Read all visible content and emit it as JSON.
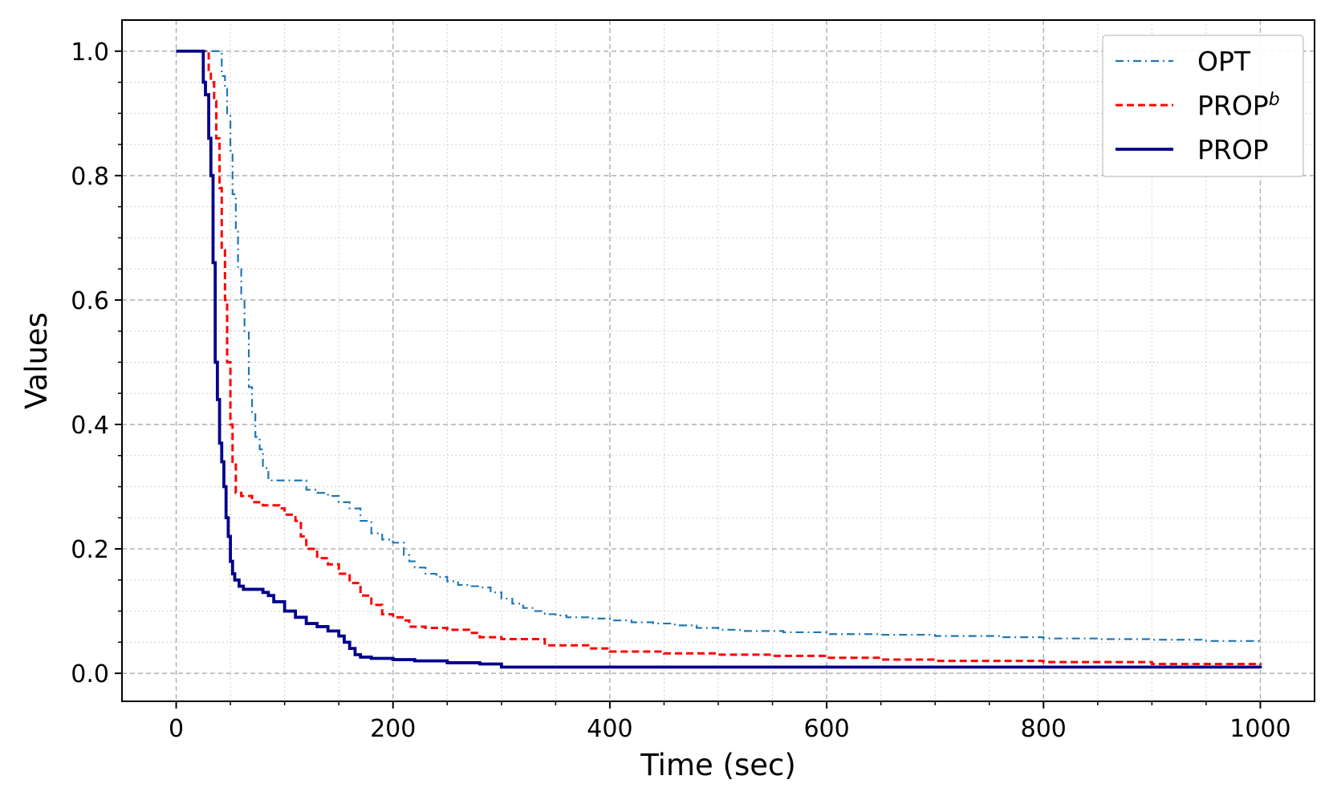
{
  "chart_data": {
    "type": "line",
    "xlabel": "Time (sec)",
    "ylabel": "Values",
    "xlim": [
      -50,
      1050
    ],
    "ylim": [
      -0.045,
      1.05
    ],
    "xticks": [
      "0",
      "200",
      "400",
      "600",
      "800",
      "1000"
    ],
    "yticks": [
      "0.0",
      "0.2",
      "0.4",
      "0.6",
      "0.8",
      "1.0"
    ],
    "grid": true,
    "minor_grid": true,
    "legend_position": "top-right",
    "series": [
      {
        "name": "OPT",
        "label_sup": "",
        "color": "#1f77b4",
        "style": "dashdot",
        "x": [
          0,
          40,
          42,
          45,
          47,
          50,
          52,
          55,
          57,
          60,
          63,
          67,
          70,
          73,
          77,
          80,
          85,
          90,
          110,
          120,
          130,
          140,
          150,
          160,
          170,
          180,
          190,
          200,
          210,
          215,
          220,
          230,
          240,
          250,
          260,
          270,
          280,
          290,
          300,
          310,
          320,
          330,
          340,
          350,
          360,
          380,
          400,
          420,
          440,
          460,
          480,
          500,
          520,
          560,
          600,
          650,
          700,
          760,
          800,
          850,
          900,
          950,
          1000
        ],
        "y": [
          1.0,
          1.0,
          0.96,
          0.94,
          0.9,
          0.84,
          0.77,
          0.71,
          0.65,
          0.6,
          0.55,
          0.46,
          0.42,
          0.38,
          0.36,
          0.33,
          0.31,
          0.31,
          0.31,
          0.295,
          0.29,
          0.285,
          0.275,
          0.265,
          0.245,
          0.225,
          0.215,
          0.21,
          0.19,
          0.18,
          0.17,
          0.16,
          0.155,
          0.148,
          0.142,
          0.14,
          0.138,
          0.13,
          0.12,
          0.112,
          0.105,
          0.1,
          0.095,
          0.093,
          0.09,
          0.088,
          0.085,
          0.082,
          0.08,
          0.077,
          0.073,
          0.07,
          0.068,
          0.066,
          0.063,
          0.062,
          0.06,
          0.058,
          0.056,
          0.055,
          0.054,
          0.052,
          0.048
        ]
      },
      {
        "name": "PROP",
        "label_sup": "b",
        "color": "#ff0000",
        "style": "dashed",
        "x": [
          0,
          28,
          30,
          32,
          35,
          37,
          40,
          42,
          45,
          47,
          50,
          52,
          55,
          60,
          70,
          80,
          95,
          100,
          110,
          115,
          120,
          130,
          140,
          150,
          160,
          170,
          180,
          190,
          200,
          210,
          215,
          230,
          250,
          270,
          280,
          300,
          340,
          380,
          400,
          450,
          500,
          550,
          600,
          650,
          700,
          800,
          900,
          1000
        ],
        "y": [
          1.0,
          1.0,
          0.97,
          0.95,
          0.92,
          0.86,
          0.78,
          0.68,
          0.6,
          0.5,
          0.4,
          0.34,
          0.29,
          0.285,
          0.275,
          0.27,
          0.265,
          0.255,
          0.245,
          0.22,
          0.2,
          0.185,
          0.175,
          0.16,
          0.145,
          0.125,
          0.11,
          0.095,
          0.09,
          0.085,
          0.075,
          0.073,
          0.07,
          0.065,
          0.058,
          0.055,
          0.045,
          0.04,
          0.035,
          0.032,
          0.03,
          0.028,
          0.025,
          0.022,
          0.02,
          0.018,
          0.015,
          0.013
        ]
      },
      {
        "name": "PROP",
        "label_sup": "",
        "color": "#00008b",
        "style": "solid",
        "x": [
          0,
          22,
          25,
          27,
          30,
          32,
          34,
          36,
          38,
          40,
          42,
          44,
          46,
          48,
          50,
          52,
          54,
          58,
          62,
          68,
          80,
          85,
          90,
          100,
          110,
          120,
          130,
          140,
          150,
          155,
          160,
          165,
          170,
          180,
          200,
          220,
          250,
          280,
          300,
          350,
          400,
          500,
          600,
          700,
          800,
          900,
          1000
        ],
        "y": [
          1.0,
          1.0,
          0.95,
          0.93,
          0.86,
          0.8,
          0.66,
          0.5,
          0.44,
          0.37,
          0.34,
          0.3,
          0.25,
          0.22,
          0.18,
          0.16,
          0.15,
          0.14,
          0.135,
          0.135,
          0.13,
          0.125,
          0.115,
          0.1,
          0.09,
          0.08,
          0.075,
          0.068,
          0.06,
          0.05,
          0.04,
          0.03,
          0.026,
          0.024,
          0.022,
          0.02,
          0.017,
          0.015,
          0.01,
          0.01,
          0.01,
          0.01,
          0.01,
          0.01,
          0.01,
          0.01,
          0.008
        ]
      }
    ]
  }
}
